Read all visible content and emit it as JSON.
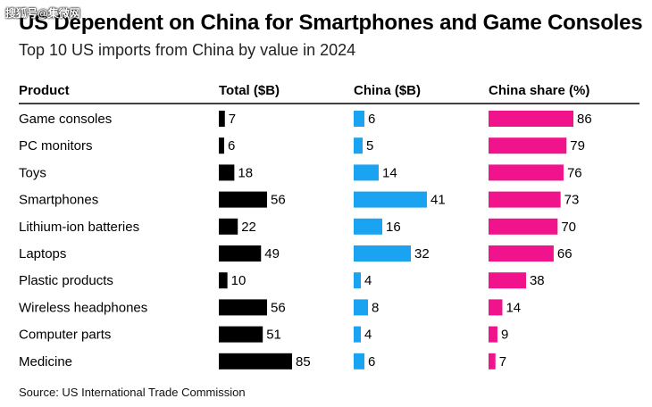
{
  "watermark": "搜狐号@集微网",
  "title": "US Dependent on China for Smartphones and Game Consoles",
  "subtitle": "Top 10 US imports from China by value in 2024",
  "source": "Source: US International Trade Commission",
  "colors": {
    "total": "#000000",
    "china": "#1aa3f0",
    "share": "#f0138c",
    "divider": "#000000"
  },
  "chart_data": {
    "type": "bar",
    "columns": [
      "Product",
      "Total ($B)",
      "China ($B)",
      "China share (%)"
    ],
    "categories": [
      "Game consoles",
      "PC monitors",
      "Toys",
      "Smartphones",
      "Lithium-ion batteries",
      "Laptops",
      "Plastic products",
      "Wireless headphones",
      "Computer parts",
      "Medicine"
    ],
    "series": [
      {
        "name": "Total ($B)",
        "values": [
          7,
          6,
          18,
          56,
          22,
          49,
          10,
          56,
          51,
          85
        ]
      },
      {
        "name": "China ($B)",
        "values": [
          6,
          5,
          14,
          41,
          16,
          32,
          4,
          8,
          4,
          6
        ]
      },
      {
        "name": "China share (%)",
        "values": [
          86,
          79,
          76,
          73,
          70,
          66,
          38,
          14,
          9,
          7
        ]
      }
    ]
  }
}
